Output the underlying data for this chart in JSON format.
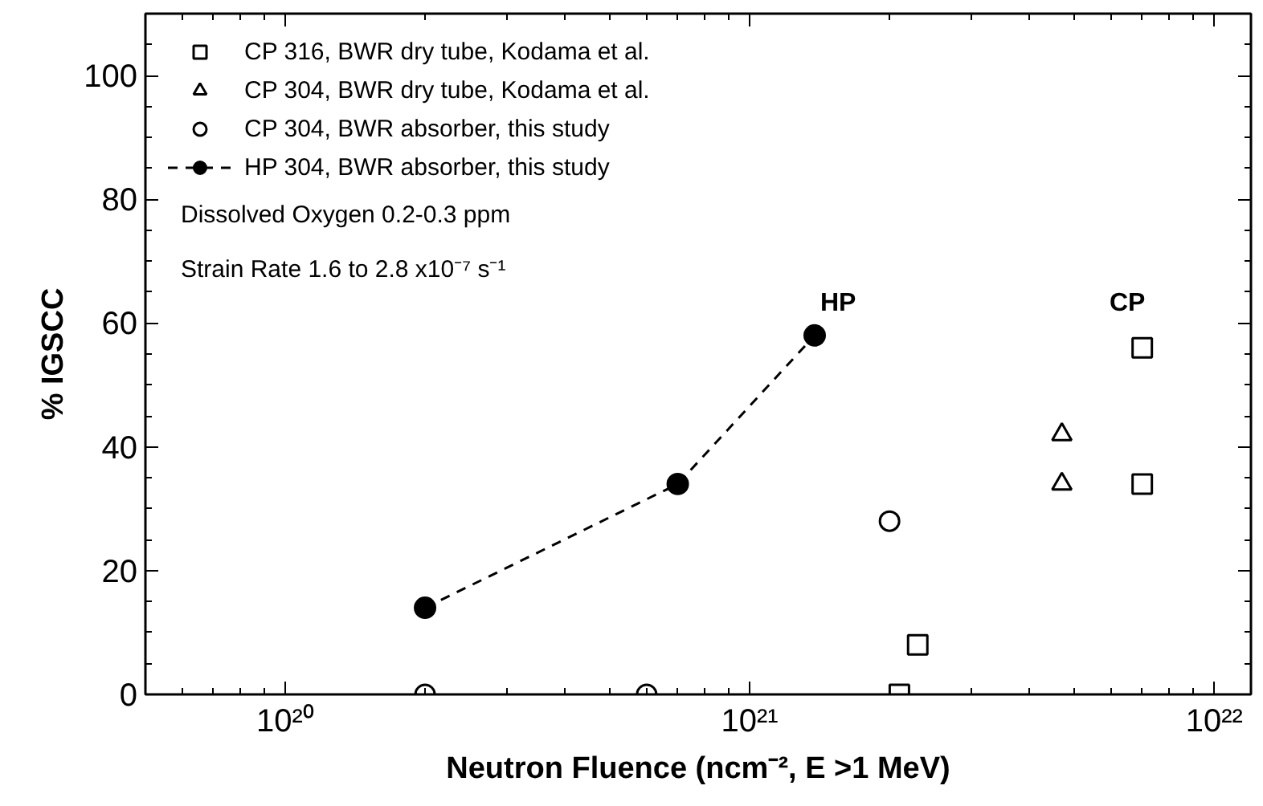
{
  "chart_data": {
    "type": "scatter",
    "xlabel": "Neutron Fluence (ncm⁻², E >1 MeV)",
    "ylabel": "% IGSCC",
    "log": "x",
    "xlim": [
      5e+19,
      1.2e+22
    ],
    "ylim": [
      0,
      110
    ],
    "xticks": [
      {
        "value": 1e+20,
        "label": "10²⁰"
      },
      {
        "value": 1e+21,
        "label": "10²¹"
      },
      {
        "value": 1e+22,
        "label": "10²²"
      }
    ],
    "yticks": [
      0,
      20,
      40,
      60,
      80,
      100
    ],
    "grid": false,
    "legend": "top left",
    "series": [
      {
        "name": "CP 316, BWR dry tube, Kodama et al.",
        "marker": "square",
        "color": "#000000",
        "x": [
          2.1e+21,
          2.3e+21,
          7e+21,
          7e+21
        ],
        "values": [
          0,
          8,
          56,
          34
        ]
      },
      {
        "name": "CP 304, BWR dry tube, Kodama et al.",
        "marker": "triangle",
        "color": "#000000",
        "x": [
          4.7e+21,
          4.7e+21
        ],
        "values": [
          42,
          34
        ]
      },
      {
        "name": "CP 304, BWR absorber, this study",
        "marker": "circle",
        "color": "#000000",
        "x": [
          2e+20,
          6e+20,
          2e+21
        ],
        "values": [
          0,
          0,
          28
        ]
      },
      {
        "name": "HP 304, BWR absorber, this study",
        "type": "line",
        "marker": "circle",
        "line_style": "dashed",
        "color": "#000000",
        "x": [
          2e+20,
          7e+20,
          1.38e+21
        ],
        "values": [
          14,
          34,
          58
        ]
      }
    ],
    "annotations": [
      "Dissolved Oxygen 0.2-0.3 ppm",
      "Strain Rate 1.6 to 2.8 x10⁻⁷ s⁻¹",
      "HP",
      "CP"
    ]
  }
}
